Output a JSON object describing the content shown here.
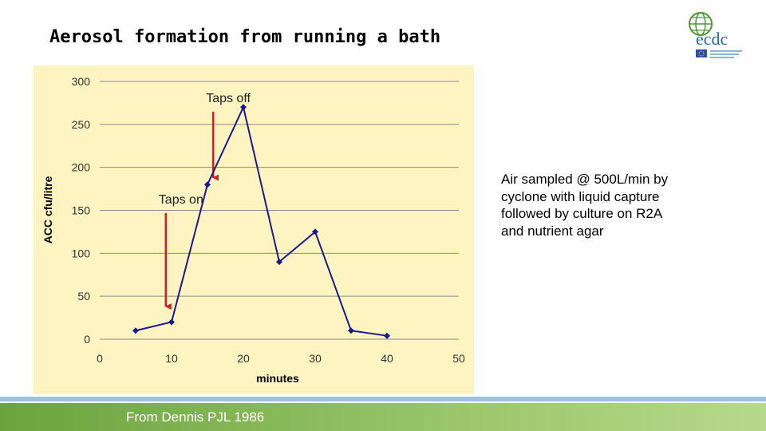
{
  "slide": {
    "title": "Aerosol formation from running a bath",
    "side_note": "Air sampled @ 500L/min by cyclone with liquid capture followed by culture on R2A and nutrient agar",
    "source": "From Dennis PJL 1986"
  },
  "logo": {
    "text": "ecdc",
    "icon": "globe-icon",
    "flag": "eu-flag-icon"
  },
  "colors": {
    "panel_bg": "#fdf4c2",
    "series": "#1a1a8c",
    "arrow": "#cc2222",
    "footer_green": "#6ba43c",
    "footer_blue": "#9cc2dc",
    "logo_green": "#4c9a3a",
    "logo_blue": "#2d6aa8"
  },
  "chart_data": {
    "type": "line",
    "title": "",
    "xlabel": "minutes",
    "ylabel": "ACC cfu/litre",
    "xlim": [
      0,
      50
    ],
    "ylim": [
      0,
      300
    ],
    "x_ticks": [
      0,
      10,
      20,
      30,
      40,
      50
    ],
    "y_ticks": [
      0,
      50,
      100,
      150,
      200,
      250,
      300
    ],
    "grid": "horizontal",
    "series": [
      {
        "x": [
          5,
          10,
          15,
          20,
          25,
          30,
          35,
          40
        ],
        "y": [
          10,
          20,
          180,
          270,
          90,
          125,
          10,
          4
        ]
      }
    ],
    "annotations": [
      {
        "text": "Taps on",
        "x": 9.2,
        "y": 38,
        "text_y": 158
      },
      {
        "text": "Taps off",
        "x": 15.8,
        "y": 188,
        "text_y": 276
      }
    ]
  }
}
